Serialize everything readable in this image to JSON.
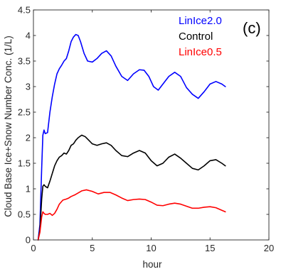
{
  "chart_data": {
    "type": "line",
    "title": "",
    "panel_label": "(c)",
    "xlabel": "hour",
    "ylabel": "Cloud Base Ice+Snow Number Conc. (1/L)",
    "xlim": [
      0,
      20
    ],
    "ylim": [
      0,
      4.5
    ],
    "xticks": [
      "0",
      "5",
      "10",
      "15",
      "20"
    ],
    "yticks": [
      "0",
      "0.5",
      "1",
      "1.5",
      "2",
      "2.5",
      "3",
      "3.5",
      "4",
      "4.5"
    ],
    "grid": false,
    "legend_position": "top-right",
    "series": [
      {
        "name": "LinIce2.0",
        "color": "#0000ff",
        "points": [
          [
            0.4,
            0.0
          ],
          [
            0.55,
            0.3
          ],
          [
            0.7,
            1.4
          ],
          [
            0.8,
            2.05
          ],
          [
            0.9,
            2.15
          ],
          [
            1.0,
            2.08
          ],
          [
            1.2,
            2.1
          ],
          [
            1.4,
            2.5
          ],
          [
            1.6,
            2.8
          ],
          [
            1.8,
            3.05
          ],
          [
            2.0,
            3.25
          ],
          [
            2.2,
            3.35
          ],
          [
            2.4,
            3.42
          ],
          [
            2.6,
            3.5
          ],
          [
            2.8,
            3.55
          ],
          [
            3.0,
            3.7
          ],
          [
            3.2,
            3.88
          ],
          [
            3.4,
            3.97
          ],
          [
            3.6,
            4.02
          ],
          [
            3.8,
            4.0
          ],
          [
            4.0,
            3.88
          ],
          [
            4.3,
            3.65
          ],
          [
            4.6,
            3.5
          ],
          [
            5.0,
            3.48
          ],
          [
            5.4,
            3.55
          ],
          [
            5.8,
            3.65
          ],
          [
            6.2,
            3.7
          ],
          [
            6.6,
            3.6
          ],
          [
            7.0,
            3.4
          ],
          [
            7.5,
            3.2
          ],
          [
            8.0,
            3.12
          ],
          [
            8.5,
            3.25
          ],
          [
            9.0,
            3.33
          ],
          [
            9.4,
            3.32
          ],
          [
            9.8,
            3.2
          ],
          [
            10.2,
            3.0
          ],
          [
            10.6,
            2.93
          ],
          [
            11.0,
            3.05
          ],
          [
            11.5,
            3.2
          ],
          [
            12.0,
            3.28
          ],
          [
            12.5,
            3.2
          ],
          [
            13.0,
            2.98
          ],
          [
            13.5,
            2.85
          ],
          [
            14.0,
            2.77
          ],
          [
            14.5,
            2.9
          ],
          [
            15.0,
            3.05
          ],
          [
            15.5,
            3.1
          ],
          [
            16.0,
            3.05
          ],
          [
            16.3,
            3.0
          ]
        ]
      },
      {
        "name": "Control",
        "color": "#000000",
        "points": [
          [
            0.4,
            0.0
          ],
          [
            0.55,
            0.2
          ],
          [
            0.7,
            0.8
          ],
          [
            0.8,
            1.05
          ],
          [
            0.9,
            1.08
          ],
          [
            1.0,
            1.05
          ],
          [
            1.2,
            1.02
          ],
          [
            1.4,
            1.15
          ],
          [
            1.6,
            1.3
          ],
          [
            1.8,
            1.45
          ],
          [
            2.0,
            1.55
          ],
          [
            2.2,
            1.62
          ],
          [
            2.4,
            1.65
          ],
          [
            2.6,
            1.7
          ],
          [
            2.8,
            1.68
          ],
          [
            3.0,
            1.75
          ],
          [
            3.2,
            1.85
          ],
          [
            3.4,
            1.88
          ],
          [
            3.6,
            1.95
          ],
          [
            3.8,
            2.0
          ],
          [
            4.1,
            2.05
          ],
          [
            4.4,
            2.02
          ],
          [
            4.7,
            1.95
          ],
          [
            5.0,
            1.88
          ],
          [
            5.4,
            1.85
          ],
          [
            5.8,
            1.88
          ],
          [
            6.2,
            1.9
          ],
          [
            6.6,
            1.85
          ],
          [
            7.0,
            1.75
          ],
          [
            7.5,
            1.65
          ],
          [
            8.0,
            1.63
          ],
          [
            8.5,
            1.7
          ],
          [
            9.0,
            1.75
          ],
          [
            9.5,
            1.7
          ],
          [
            10.0,
            1.55
          ],
          [
            10.5,
            1.45
          ],
          [
            11.0,
            1.5
          ],
          [
            11.5,
            1.62
          ],
          [
            12.0,
            1.68
          ],
          [
            12.5,
            1.6
          ],
          [
            13.0,
            1.5
          ],
          [
            13.5,
            1.4
          ],
          [
            14.0,
            1.37
          ],
          [
            14.5,
            1.45
          ],
          [
            15.0,
            1.55
          ],
          [
            15.5,
            1.57
          ],
          [
            16.0,
            1.5
          ],
          [
            16.3,
            1.45
          ]
        ]
      },
      {
        "name": "LinIce0.5",
        "color": "#ff0000",
        "points": [
          [
            0.4,
            0.0
          ],
          [
            0.55,
            0.15
          ],
          [
            0.7,
            0.45
          ],
          [
            0.8,
            0.55
          ],
          [
            0.9,
            0.52
          ],
          [
            1.0,
            0.5
          ],
          [
            1.2,
            0.5
          ],
          [
            1.4,
            0.52
          ],
          [
            1.6,
            0.48
          ],
          [
            1.8,
            0.52
          ],
          [
            2.0,
            0.6
          ],
          [
            2.2,
            0.7
          ],
          [
            2.5,
            0.78
          ],
          [
            2.8,
            0.8
          ],
          [
            3.0,
            0.82
          ],
          [
            3.2,
            0.85
          ],
          [
            3.5,
            0.88
          ],
          [
            3.8,
            0.92
          ],
          [
            4.1,
            0.96
          ],
          [
            4.5,
            0.98
          ],
          [
            5.0,
            0.95
          ],
          [
            5.5,
            0.9
          ],
          [
            6.0,
            0.93
          ],
          [
            6.5,
            0.93
          ],
          [
            7.0,
            0.88
          ],
          [
            7.5,
            0.82
          ],
          [
            8.0,
            0.77
          ],
          [
            8.5,
            0.79
          ],
          [
            9.0,
            0.8
          ],
          [
            9.5,
            0.79
          ],
          [
            10.0,
            0.74
          ],
          [
            10.5,
            0.68
          ],
          [
            11.0,
            0.67
          ],
          [
            11.5,
            0.7
          ],
          [
            12.0,
            0.72
          ],
          [
            12.5,
            0.7
          ],
          [
            13.0,
            0.66
          ],
          [
            13.5,
            0.62
          ],
          [
            14.0,
            0.62
          ],
          [
            14.5,
            0.64
          ],
          [
            15.0,
            0.65
          ],
          [
            15.5,
            0.63
          ],
          [
            16.0,
            0.58
          ],
          [
            16.3,
            0.55
          ]
        ]
      }
    ]
  }
}
